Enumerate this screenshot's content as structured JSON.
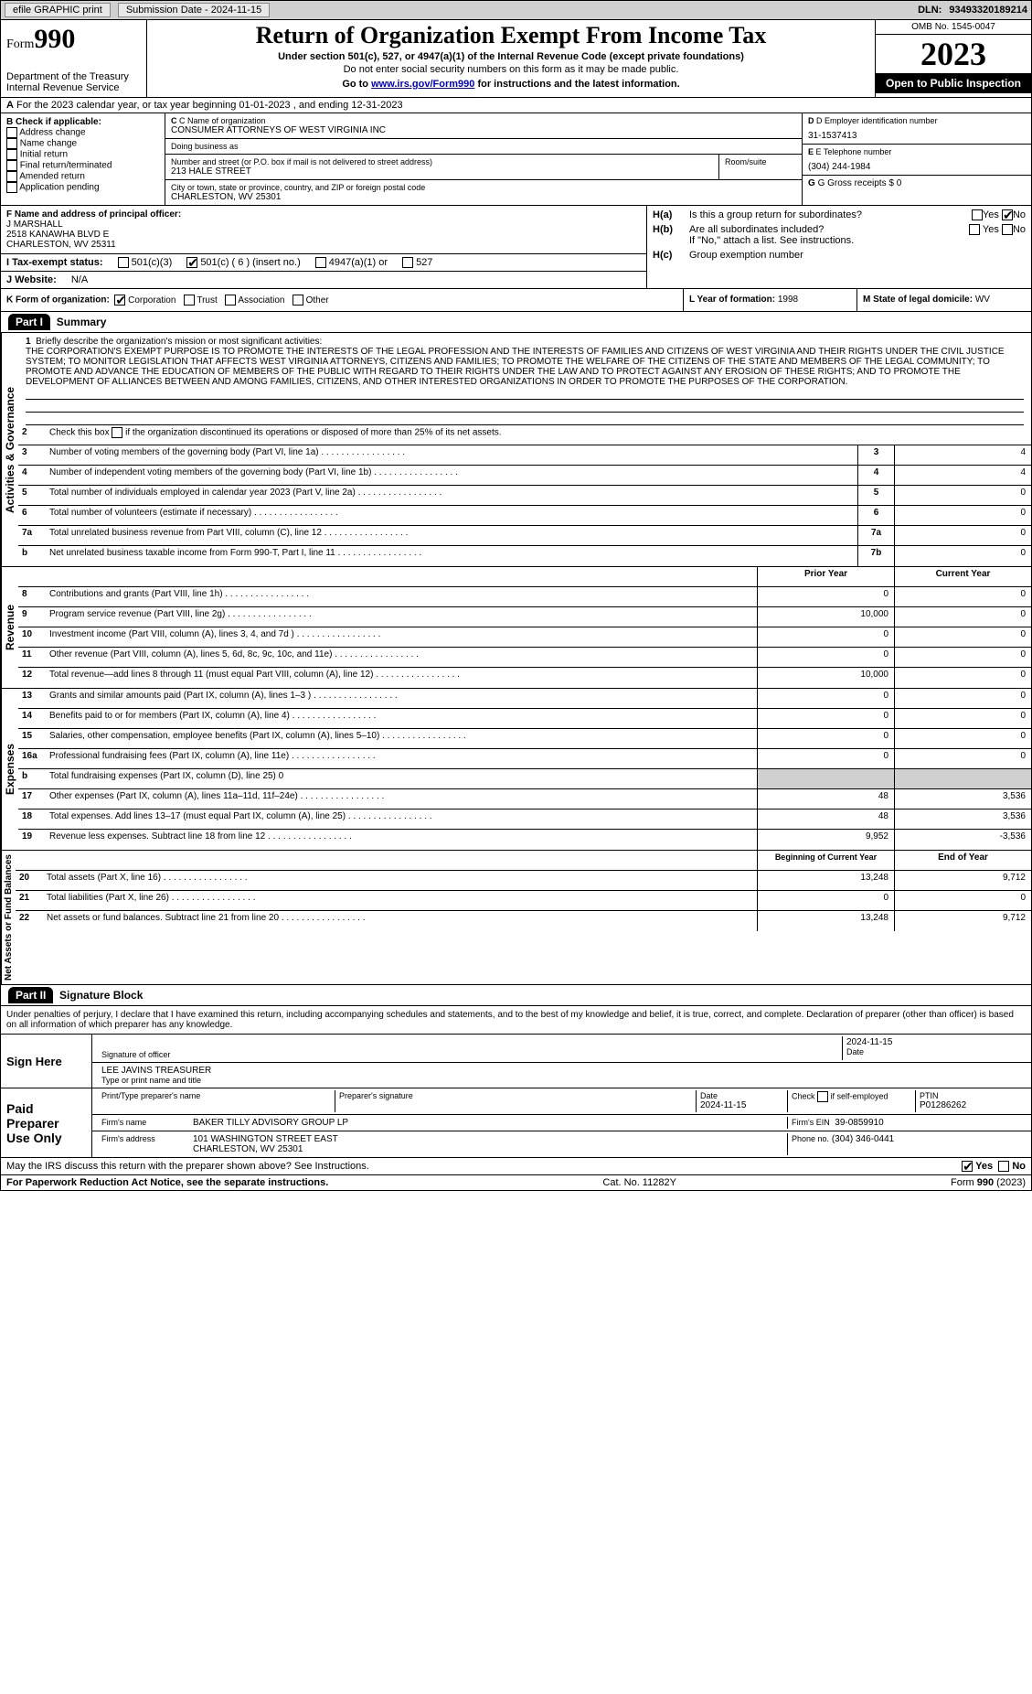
{
  "topbar": {
    "efile": "efile GRAPHIC print",
    "submission": "Submission Date - 2024-11-15",
    "dln_lbl": "DLN:",
    "dln": "93493320189214"
  },
  "header": {
    "form_word": "Form",
    "form_num": "990",
    "dept1": "Department of the Treasury",
    "dept2": "Internal Revenue Service",
    "title": "Return of Organization Exempt From Income Tax",
    "sub1": "Under section 501(c), 527, or 4947(a)(1) of the Internal Revenue Code (except private foundations)",
    "sub2": "Do not enter social security numbers on this form as it may be made public.",
    "sub3a": "Go to ",
    "sub3link": "www.irs.gov/Form990",
    "sub3b": " for instructions and the latest information.",
    "omb": "OMB No. 1545-0047",
    "year": "2023",
    "open": "Open to Public Inspection"
  },
  "rowA": {
    "a": "A",
    "text": "For the 2023 calendar year, or tax year beginning 01-01-2023     , and ending 12-31-2023"
  },
  "boxB": {
    "hdr": "B Check if applicable:",
    "items": [
      "Address change",
      "Name change",
      "Initial return",
      "Final return/terminated",
      "Amended return",
      "Application pending"
    ]
  },
  "boxC": {
    "name_lbl": "C Name of organization",
    "name": "CONSUMER ATTORNEYS OF WEST VIRGINIA INC",
    "dba_lbl": "Doing business as",
    "dba": "",
    "street_lbl": "Number and street (or P.O. box if mail is not delivered to street address)",
    "street": "213 HALE STREET",
    "room_lbl": "Room/suite",
    "room": "",
    "city_lbl": "City or town, state or province, country, and ZIP or foreign postal code",
    "city": "CHARLESTON, WV  25301"
  },
  "boxD": {
    "ein_lbl": "D Employer identification number",
    "ein": "31-1537413",
    "tel_lbl": "E Telephone number",
    "tel": "(304) 244-1984",
    "gross_lbl": "G Gross receipts $",
    "gross": "0"
  },
  "boxF": {
    "lbl": "F Name and address of principal officer:",
    "name": "J MARSHALL",
    "addr1": "2518 KANAWHA BLVD E",
    "addr2": "CHARLESTON, WV  25311"
  },
  "boxH": {
    "ha_lbl": "H(a)",
    "ha_text": "Is this a group return for subordinates?",
    "hb_lbl": "H(b)",
    "hb_text": "Are all subordinates included?",
    "hb_note": "If \"No,\" attach a list. See instructions.",
    "hc_lbl": "H(c)",
    "hc_text": "Group exemption number",
    "yes": "Yes",
    "no": "No"
  },
  "rowI": {
    "lbl": "I   Tax-exempt status:",
    "o1": "501(c)(3)",
    "o2": "501(c) ( 6 ) (insert no.)",
    "o3": "4947(a)(1) or",
    "o4": "527"
  },
  "rowJ": {
    "lbl": "J   Website:",
    "val": "N/A"
  },
  "rowK": {
    "lbl": "K Form of organization:",
    "o1": "Corporation",
    "o2": "Trust",
    "o3": "Association",
    "o4": "Other"
  },
  "rowL": {
    "lbl": "L Year of formation:",
    "val": "1998"
  },
  "rowM": {
    "lbl": "M State of legal domicile:",
    "val": "WV"
  },
  "part1": {
    "hdr": "Part I",
    "title": "Summary",
    "vert1": "Activities & Governance",
    "vert2": "Revenue",
    "vert3": "Expenses",
    "vert4": "Net Assets or Fund Balances",
    "l1lbl": "1",
    "l1text": "Briefly describe the organization's mission or most significant activities:",
    "mission": "THE CORPORATION'S EXEMPT PURPOSE IS TO PROMOTE THE INTERESTS OF THE LEGAL PROFESSION AND THE INTERESTS OF FAMILIES AND CITIZENS OF WEST VIRGINIA AND THEIR RIGHTS UNDER THE CIVIL JUSTICE SYSTEM; TO MONITOR LEGISLATION THAT AFFECTS WEST VIRGINIA ATTORNEYS, CITIZENS AND FAMILIES; TO PROMOTE THE WELFARE OF THE CITIZENS OF THE STATE AND MEMBERS OF THE LEGAL COMMUNITY; TO PROMOTE AND ADVANCE THE EDUCATION OF MEMBERS OF THE PUBLIC WITH REGARD TO THEIR RIGHTS UNDER THE LAW AND TO PROTECT AGAINST ANY EROSION OF THESE RIGHTS; AND TO PROMOTE THE DEVELOPMENT OF ALLIANCES BETWEEN AND AMONG FAMILIES, CITIZENS, AND OTHER INTERESTED ORGANIZATIONS IN ORDER TO PROMOTE THE PURPOSES OF THE CORPORATION.",
    "l2text": "Check this box        if the organization discontinued its operations or disposed of more than 25% of its net assets.",
    "rows_gov": [
      {
        "n": "3",
        "t": "Number of voting members of the governing body (Part VI, line 1a)",
        "c": "3",
        "v": "4"
      },
      {
        "n": "4",
        "t": "Number of independent voting members of the governing body (Part VI, line 1b)",
        "c": "4",
        "v": "4"
      },
      {
        "n": "5",
        "t": "Total number of individuals employed in calendar year 2023 (Part V, line 2a)",
        "c": "5",
        "v": "0"
      },
      {
        "n": "6",
        "t": "Total number of volunteers (estimate if necessary)",
        "c": "6",
        "v": "0"
      },
      {
        "n": "7a",
        "t": "Total unrelated business revenue from Part VIII, column (C), line 12",
        "c": "7a",
        "v": "0"
      },
      {
        "n": "b",
        "t": "Net unrelated business taxable income from Form 990-T, Part I, line 11",
        "c": "7b",
        "v": "0"
      }
    ],
    "col_prior": "Prior Year",
    "col_curr": "Current Year",
    "rows_rev": [
      {
        "n": "8",
        "t": "Contributions and grants (Part VIII, line 1h)",
        "p": "0",
        "c": "0"
      },
      {
        "n": "9",
        "t": "Program service revenue (Part VIII, line 2g)",
        "p": "10,000",
        "c": "0"
      },
      {
        "n": "10",
        "t": "Investment income (Part VIII, column (A), lines 3, 4, and 7d )",
        "p": "0",
        "c": "0"
      },
      {
        "n": "11",
        "t": "Other revenue (Part VIII, column (A), lines 5, 6d, 8c, 9c, 10c, and 11e)",
        "p": "0",
        "c": "0"
      },
      {
        "n": "12",
        "t": "Total revenue—add lines 8 through 11 (must equal Part VIII, column (A), line 12)",
        "p": "10,000",
        "c": "0"
      }
    ],
    "rows_exp": [
      {
        "n": "13",
        "t": "Grants and similar amounts paid (Part IX, column (A), lines 1–3 )",
        "p": "0",
        "c": "0"
      },
      {
        "n": "14",
        "t": "Benefits paid to or for members (Part IX, column (A), line 4)",
        "p": "0",
        "c": "0"
      },
      {
        "n": "15",
        "t": "Salaries, other compensation, employee benefits (Part IX, column (A), lines 5–10)",
        "p": "0",
        "c": "0"
      },
      {
        "n": "16a",
        "t": "Professional fundraising fees (Part IX, column (A), line 11e)",
        "p": "0",
        "c": "0"
      },
      {
        "n": "b",
        "t": "Total fundraising expenses (Part IX, column (D), line 25) 0",
        "p": "",
        "c": "",
        "grey": true
      },
      {
        "n": "17",
        "t": "Other expenses (Part IX, column (A), lines 11a–11d, 11f–24e)",
        "p": "48",
        "c": "3,536"
      },
      {
        "n": "18",
        "t": "Total expenses. Add lines 13–17 (must equal Part IX, column (A), line 25)",
        "p": "48",
        "c": "3,536"
      },
      {
        "n": "19",
        "t": "Revenue less expenses. Subtract line 18 from line 12",
        "p": "9,952",
        "c": "-3,536"
      }
    ],
    "col_beg": "Beginning of Current Year",
    "col_end": "End of Year",
    "rows_net": [
      {
        "n": "20",
        "t": "Total assets (Part X, line 16)",
        "p": "13,248",
        "c": "9,712"
      },
      {
        "n": "21",
        "t": "Total liabilities (Part X, line 26)",
        "p": "0",
        "c": "0"
      },
      {
        "n": "22",
        "t": "Net assets or fund balances. Subtract line 21 from line 20",
        "p": "13,248",
        "c": "9,712"
      }
    ]
  },
  "part2": {
    "hdr": "Part II",
    "title": "Signature Block",
    "decl": "Under penalties of perjury, I declare that I have examined this return, including accompanying schedules and statements, and to the best of my knowledge and belief, it is true, correct, and complete. Declaration of preparer (other than officer) is based on all information of which preparer has any knowledge.",
    "sign_here": "Sign Here",
    "sig_off_lbl": "Signature of officer",
    "sig_date": "2024-11-15",
    "sig_date_lbl": "Date",
    "sig_name": "LEE JAVINS TREASURER",
    "sig_name_lbl": "Type or print name and title",
    "paid_prep": "Paid Preparer Use Only",
    "pp_name_lbl": "Print/Type preparer's name",
    "pp_sig_lbl": "Preparer's signature",
    "pp_date_lbl": "Date",
    "pp_date": "2024-11-15",
    "pp_self_lbl": "Check        if self-employed",
    "ptin_lbl": "PTIN",
    "ptin": "P01286262",
    "firm_name_lbl": "Firm's name",
    "firm_name": "BAKER TILLY ADVISORY GROUP LP",
    "firm_ein_lbl": "Firm's EIN",
    "firm_ein": "39-0859910",
    "firm_addr_lbl": "Firm's address",
    "firm_addr1": "101 WASHINGTON STREET EAST",
    "firm_addr2": "CHARLESTON, WV  25301",
    "firm_phone_lbl": "Phone no.",
    "firm_phone": "(304) 346-0441",
    "discuss": "May the IRS discuss this return with the preparer shown above? See Instructions."
  },
  "footer": {
    "pra": "For Paperwork Reduction Act Notice, see the separate instructions.",
    "cat": "Cat. No. 11282Y",
    "form": "Form 990 (2023)"
  },
  "colors": {
    "black": "#000000",
    "grey": "#d0d0d0"
  }
}
